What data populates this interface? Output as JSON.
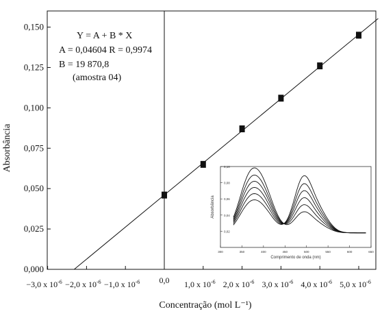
{
  "chart_data": [
    {
      "type": "scatter",
      "xlabel": "Concentração (mol L⁻¹)",
      "ylabel": "Absorbância",
      "xlim": [
        -3e-06,
        5.5e-06
      ],
      "ylim": [
        0.0,
        0.16
      ],
      "x_ticks": [
        -3e-06,
        -2e-06,
        -1e-06,
        0.0,
        1e-06,
        2e-06,
        3e-06,
        4e-06,
        5e-06
      ],
      "x_tick_labels": [
        "−3,0 x 10",
        "−2,0 x 10",
        "−1,0 x 10",
        "0,0",
        "1,0 x 10",
        "2,0 x 10",
        "3,0 x 10",
        "4,0 x 10",
        "5,0 x 10"
      ],
      "x_tick_exponents": [
        "-6",
        "-6",
        "-6",
        "",
        "-6",
        "-6",
        "-6",
        "-6",
        "-6"
      ],
      "y_ticks": [
        0.0,
        0.025,
        0.05,
        0.075,
        0.1,
        0.125,
        0.15
      ],
      "y_tick_labels": [
        "0,000",
        "0,025",
        "0,050",
        "0,075",
        "0,100",
        "0,125",
        "0,150"
      ],
      "points": {
        "x": [
          0.0,
          1e-06,
          2e-06,
          3e-06,
          4e-06,
          5e-06
        ],
        "y": [
          0.046,
          0.065,
          0.087,
          0.106,
          0.126,
          0.145
        ]
      },
      "fit": {
        "A": 0.04604,
        "B": 19870.8
      },
      "annotation_lines": [
        "Y = A + B * X",
        "A = 0,04604 R = 0,9974",
        "B = 19 870,8",
        "(amostra 04)"
      ]
    },
    {
      "type": "line",
      "xlabel": "Comprimento de onda (nm)",
      "ylabel": "Absorbância",
      "xlim": [
        300,
        650
      ],
      "ylim": [
        0.0,
        0.1
      ],
      "x_tick_labels": [
        "300",
        "350",
        "400",
        "450",
        "500",
        "550",
        "600",
        "650"
      ],
      "y_tick_labels": [
        "0,02",
        "0,04",
        "0,06",
        "0,08",
        "0,10"
      ],
      "y_ticks": [
        0.02,
        0.04,
        0.06,
        0.08,
        0.1
      ],
      "curve_params": [
        {
          "a": 0.032,
          "b": 0.065
        },
        {
          "a": 0.038,
          "b": 0.056
        },
        {
          "a": 0.044,
          "b": 0.048
        },
        {
          "a": 0.05,
          "b": 0.04
        },
        {
          "a": 0.056,
          "b": 0.032
        },
        {
          "a": 0.063,
          "b": 0.024
        }
      ]
    }
  ]
}
